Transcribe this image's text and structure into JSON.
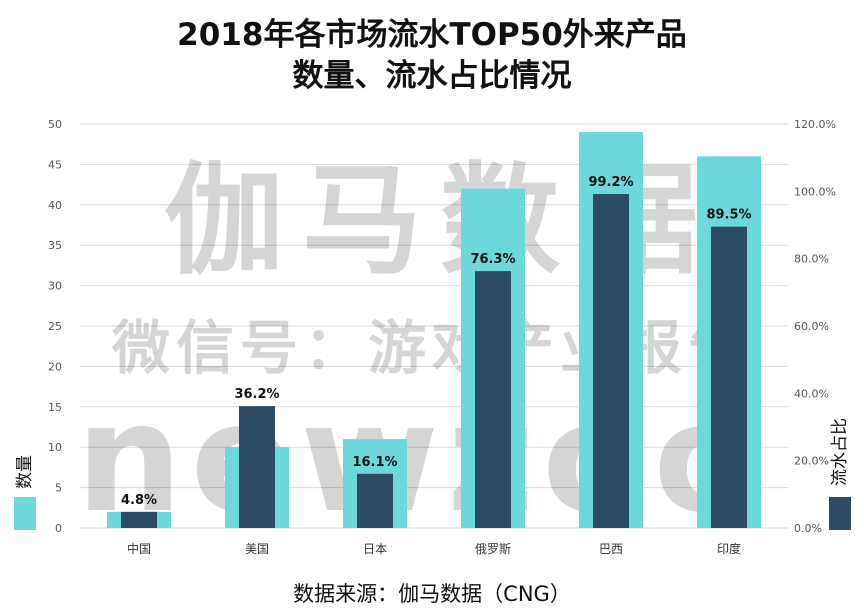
{
  "chart_data": {
    "type": "bar",
    "title_line1": "2018年各市场流水TOP50外来产品",
    "title_line2": "数量、流水占比情况",
    "categories": [
      "中国",
      "美国",
      "日本",
      "俄罗斯",
      "巴西",
      "印度"
    ],
    "series": [
      {
        "name": "数量",
        "axis": "left",
        "values": [
          2,
          10,
          11,
          42,
          49,
          46
        ],
        "color": "#6dd8dc"
      },
      {
        "name": "流水占比",
        "axis": "right",
        "values": [
          4.8,
          36.2,
          16.1,
          76.3,
          99.2,
          89.5
        ],
        "labels": [
          "4.8%",
          "36.2%",
          "16.1%",
          "76.3%",
          "99.2%",
          "89.5%"
        ],
        "color": "#2b4a63"
      }
    ],
    "y_left": {
      "min": 0,
      "max": 50,
      "ticks": [
        "0",
        "5",
        "10",
        "15",
        "20",
        "25",
        "30",
        "35",
        "40",
        "45",
        "50"
      ]
    },
    "y_right": {
      "min": 0,
      "max": 120,
      "ticks": [
        "0.0%",
        "20.0%",
        "40.0%",
        "60.0%",
        "80.0%",
        "100.0%",
        "120.0%"
      ]
    },
    "legend_left": "数量",
    "legend_right": "流水占比",
    "watermark": [
      "伽马数据",
      "微信号：游戏产业报告",
      "newzoo"
    ],
    "source": "数据来源：伽马数据（CNG）",
    "grid": true
  }
}
